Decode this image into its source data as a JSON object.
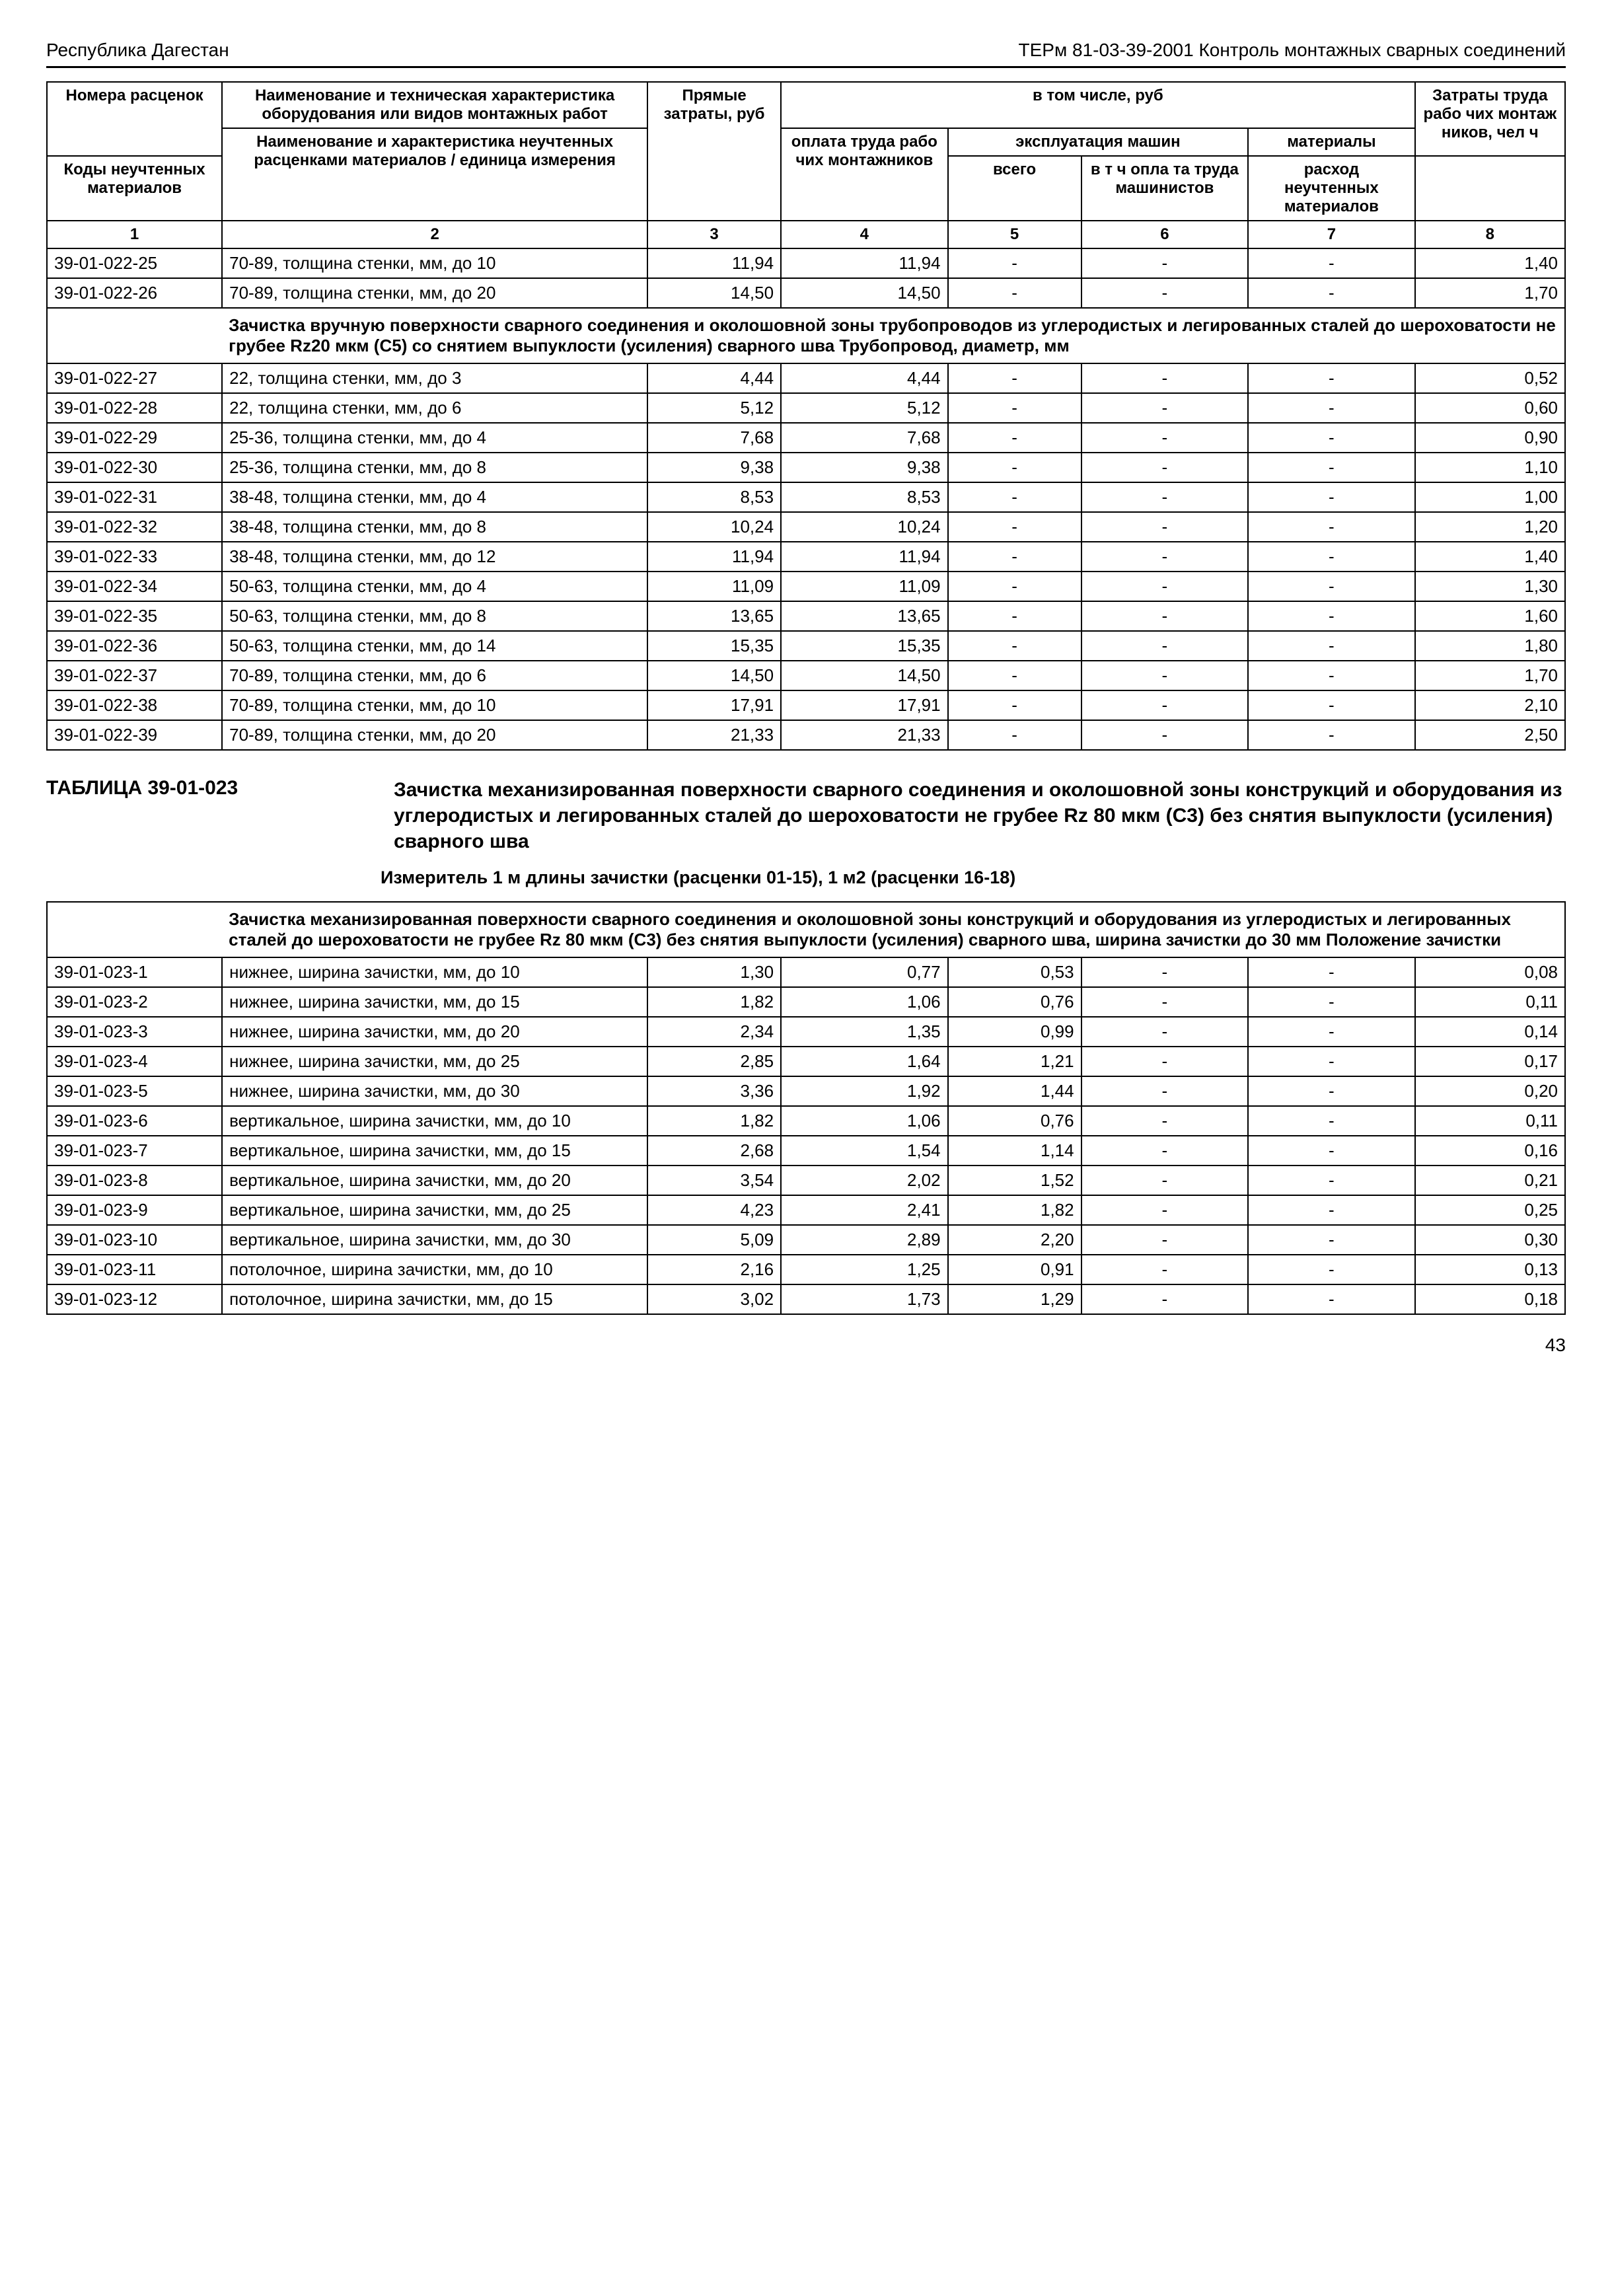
{
  "header_left": "Республика Дагестан",
  "header_right": "ТЕРм 81-03-39-2001 Контроль монтажных сварных соединений",
  "page_number": "43",
  "thead": {
    "r1_c1": "Номера расценок",
    "r1_c2": "Наименование и техническая характеристика оборудования или видов монтажных работ",
    "r1_c3": "Прямые затраты, руб",
    "r1_c4b": "оплата труда рабо чих монтаж­ников",
    "r1_c4a": "в том числе, руб",
    "r1_c7": "материалы",
    "r1_c8": "Затраты труда рабо чих монтаж ников, чел  ч",
    "r2_c1": "Коды неучтенных материалов",
    "r2_c2": "Наименование и характеристика неучтенных расценками материалов / единица измерения",
    "r2_c5a": "эксплуатация машин",
    "r2_c5": "всего",
    "r2_c6": "в т ч  опла та труда машинистов",
    "r2_c7": "расход неучтенных материалов",
    "num1": "1",
    "num2": "2",
    "num3": "3",
    "num4": "4",
    "num5": "5",
    "num6": "6",
    "num7": "7",
    "num8": "8"
  },
  "section1": "Зачистка вручную поверхности сварного соединения и околошовной зоны трубопроводов из углеродистых и легированных сталей до шероховатости не грубее Rz20 мкм (С5) со снятием выпуклости (усиления) сварного шва  Трубопровод, диаметр, мм",
  "caption_num": "ТАБЛИЦА  39-01-023",
  "caption_text": "Зачистка механизированная поверхности сварного соедине­ния и околошовной зоны конструкций и оборудования из уг­леродистых и легированных сталей до шероховатости не гру­бее Rz 80 мкм (С3) без снятия выпуклости (усиления) свар­ного шва",
  "measure": "Измеритель  1 м длины зачистки (расценки 01-15), 1 м2 (расценки 16-18)",
  "section2": "Зачистка механизированная поверхности сварного соединения и околошовной зоны конст­рукций и оборудования из углеродистых и легированных сталей до шероховатости не грубее Rz 80 мкм (С3) без снятия выпуклости (усиления) сварного шва, ширина зачистки до 30 мм  Положение зачистки",
  "rows1": [
    {
      "code": "39-01-022-25",
      "desc": "70-89, толщина стенки, мм, до 10",
      "v3": "11,94",
      "v4": "11,94",
      "v5": "-",
      "v6": "-",
      "v7": "-",
      "v8": "1,40"
    },
    {
      "code": "39-01-022-26",
      "desc": "70-89, толщина стенки, мм, до 20",
      "v3": "14,50",
      "v4": "14,50",
      "v5": "-",
      "v6": "-",
      "v7": "-",
      "v8": "1,70"
    }
  ],
  "rows2": [
    {
      "code": "39-01-022-27",
      "desc": "22, толщина стенки, мм, до 3",
      "v3": "4,44",
      "v4": "4,44",
      "v5": "-",
      "v6": "-",
      "v7": "-",
      "v8": "0,52"
    },
    {
      "code": "39-01-022-28",
      "desc": "22, толщина стенки, мм, до 6",
      "v3": "5,12",
      "v4": "5,12",
      "v5": "-",
      "v6": "-",
      "v7": "-",
      "v8": "0,60"
    },
    {
      "code": "39-01-022-29",
      "desc": "25-36, толщина стенки, мм, до 4",
      "v3": "7,68",
      "v4": "7,68",
      "v5": "-",
      "v6": "-",
      "v7": "-",
      "v8": "0,90"
    },
    {
      "code": "39-01-022-30",
      "desc": "25-36, толщина стенки, мм, до 8",
      "v3": "9,38",
      "v4": "9,38",
      "v5": "-",
      "v6": "-",
      "v7": "-",
      "v8": "1,10"
    },
    {
      "code": "39-01-022-31",
      "desc": "38-48, толщина стенки, мм, до 4",
      "v3": "8,53",
      "v4": "8,53",
      "v5": "-",
      "v6": "-",
      "v7": "-",
      "v8": "1,00"
    },
    {
      "code": "39-01-022-32",
      "desc": "38-48, толщина стенки, мм, до 8",
      "v3": "10,24",
      "v4": "10,24",
      "v5": "-",
      "v6": "-",
      "v7": "-",
      "v8": "1,20"
    },
    {
      "code": "39-01-022-33",
      "desc": "38-48, толщина стенки, мм, до 12",
      "v3": "11,94",
      "v4": "11,94",
      "v5": "-",
      "v6": "-",
      "v7": "-",
      "v8": "1,40"
    },
    {
      "code": "39-01-022-34",
      "desc": "50-63, толщина стенки, мм, до 4",
      "v3": "11,09",
      "v4": "11,09",
      "v5": "-",
      "v6": "-",
      "v7": "-",
      "v8": "1,30"
    },
    {
      "code": "39-01-022-35",
      "desc": "50-63, толщина стенки, мм, до 8",
      "v3": "13,65",
      "v4": "13,65",
      "v5": "-",
      "v6": "-",
      "v7": "-",
      "v8": "1,60"
    },
    {
      "code": "39-01-022-36",
      "desc": "50-63, толщина стенки, мм, до 14",
      "v3": "15,35",
      "v4": "15,35",
      "v5": "-",
      "v6": "-",
      "v7": "-",
      "v8": "1,80"
    },
    {
      "code": "39-01-022-37",
      "desc": "70-89, толщина стенки, мм, до 6",
      "v3": "14,50",
      "v4": "14,50",
      "v5": "-",
      "v6": "-",
      "v7": "-",
      "v8": "1,70"
    },
    {
      "code": "39-01-022-38",
      "desc": "70-89, толщина стенки, мм, до 10",
      "v3": "17,91",
      "v4": "17,91",
      "v5": "-",
      "v6": "-",
      "v7": "-",
      "v8": "2,10"
    },
    {
      "code": "39-01-022-39",
      "desc": "70-89, толщина стенки, мм, до 20",
      "v3": "21,33",
      "v4": "21,33",
      "v5": "-",
      "v6": "-",
      "v7": "-",
      "v8": "2,50"
    }
  ],
  "rows3": [
    {
      "code": "39-01-023-1",
      "desc": "нижнее, ширина зачистки, мм, до 10",
      "v3": "1,30",
      "v4": "0,77",
      "v5": "0,53",
      "v6": "-",
      "v7": "-",
      "v8": "0,08"
    },
    {
      "code": "39-01-023-2",
      "desc": "нижнее, ширина зачистки, мм, до 15",
      "v3": "1,82",
      "v4": "1,06",
      "v5": "0,76",
      "v6": "-",
      "v7": "-",
      "v8": "0,11"
    },
    {
      "code": "39-01-023-3",
      "desc": "нижнее, ширина зачистки, мм, до 20",
      "v3": "2,34",
      "v4": "1,35",
      "v5": "0,99",
      "v6": "-",
      "v7": "-",
      "v8": "0,14"
    },
    {
      "code": "39-01-023-4",
      "desc": "нижнее, ширина зачистки, мм, до 25",
      "v3": "2,85",
      "v4": "1,64",
      "v5": "1,21",
      "v6": "-",
      "v7": "-",
      "v8": "0,17"
    },
    {
      "code": "39-01-023-5",
      "desc": "нижнее, ширина зачистки, мм, до 30",
      "v3": "3,36",
      "v4": "1,92",
      "v5": "1,44",
      "v6": "-",
      "v7": "-",
      "v8": "0,20"
    },
    {
      "code": "39-01-023-6",
      "desc": "вертикальное, ширина зачистки, мм, до 10",
      "v3": "1,82",
      "v4": "1,06",
      "v5": "0,76",
      "v6": "-",
      "v7": "-",
      "v8": "0,11"
    },
    {
      "code": "39-01-023-7",
      "desc": "вертикальное, ширина зачистки, мм, до 15",
      "v3": "2,68",
      "v4": "1,54",
      "v5": "1,14",
      "v6": "-",
      "v7": "-",
      "v8": "0,16"
    },
    {
      "code": "39-01-023-8",
      "desc": "вертикальное, ширина зачистки, мм, до 20",
      "v3": "3,54",
      "v4": "2,02",
      "v5": "1,52",
      "v6": "-",
      "v7": "-",
      "v8": "0,21"
    },
    {
      "code": "39-01-023-9",
      "desc": "вертикальное, ширина зачистки, мм, до 25",
      "v3": "4,23",
      "v4": "2,41",
      "v5": "1,82",
      "v6": "-",
      "v7": "-",
      "v8": "0,25"
    },
    {
      "code": "39-01-023-10",
      "desc": "вертикальное, ширина зачистки, мм, до 30",
      "v3": "5,09",
      "v4": "2,89",
      "v5": "2,20",
      "v6": "-",
      "v7": "-",
      "v8": "0,30"
    },
    {
      "code": "39-01-023-11",
      "desc": "потолочное, ширина зачистки, мм, до 10",
      "v3": "2,16",
      "v4": "1,25",
      "v5": "0,91",
      "v6": "-",
      "v7": "-",
      "v8": "0,13"
    },
    {
      "code": "39-01-023-12",
      "desc": "потолочное, ширина зачистки, мм, до 15",
      "v3": "3,02",
      "v4": "1,73",
      "v5": "1,29",
      "v6": "-",
      "v7": "-",
      "v8": "0,18"
    }
  ]
}
